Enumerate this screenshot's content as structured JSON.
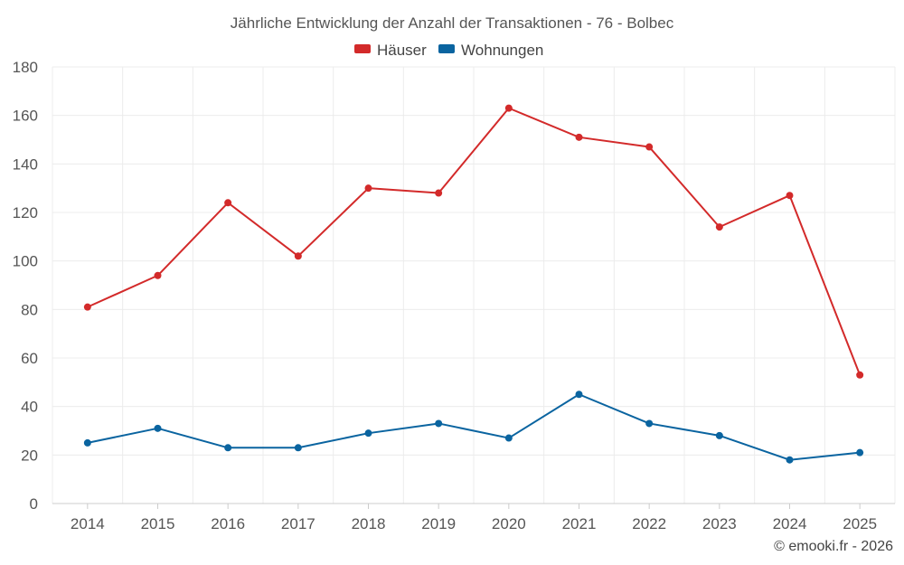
{
  "chart_data": {
    "type": "line",
    "title": "Jährliche Entwicklung der Anzahl der Transaktionen - 76 - Bolbec",
    "categories": [
      "2014",
      "2015",
      "2016",
      "2017",
      "2018",
      "2019",
      "2020",
      "2021",
      "2022",
      "2023",
      "2024",
      "2025"
    ],
    "series": [
      {
        "name": "Häuser",
        "color": "#d32a2a",
        "values": [
          81,
          94,
          124,
          102,
          130,
          128,
          163,
          151,
          147,
          114,
          127,
          53
        ]
      },
      {
        "name": "Wohnungen",
        "color": "#0a64a0",
        "values": [
          25,
          31,
          23,
          23,
          29,
          33,
          27,
          45,
          33,
          28,
          18,
          21
        ]
      }
    ],
    "ylim": [
      0,
      180
    ],
    "yticks": [
      "0",
      "20",
      "40",
      "60",
      "80",
      "100",
      "120",
      "140",
      "160",
      "180"
    ],
    "grid": true,
    "legend": "top-center",
    "xlabel": "",
    "ylabel": ""
  },
  "credit": "© emooki.fr - 2026"
}
